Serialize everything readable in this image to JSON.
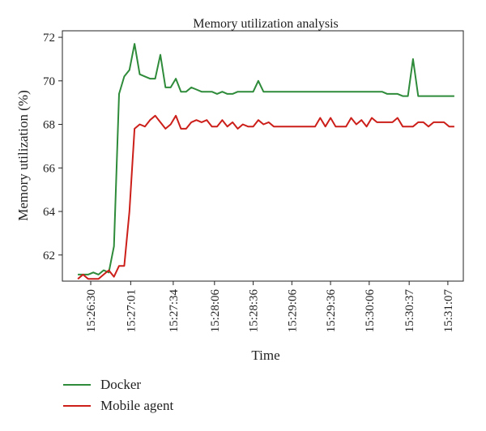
{
  "chart_data": {
    "type": "line",
    "title": "Memory utilization analysis",
    "xlabel": "Time",
    "ylabel": "Memory utilization (%)",
    "ylim": [
      60.8,
      72.3
    ],
    "yticks": [
      62,
      64,
      66,
      68,
      70,
      72
    ],
    "xticks": [
      "15:26:30",
      "15:27:01",
      "15:27:34",
      "15:28:06",
      "15:28:36",
      "15:29:06",
      "15:29:36",
      "15:30:06",
      "15:30:37",
      "15:31:07"
    ],
    "grid": false,
    "legend_position": "bottom-left",
    "x": [
      "15:26:20",
      "15:26:24",
      "15:26:28",
      "15:26:32",
      "15:26:36",
      "15:26:40",
      "15:26:44",
      "15:26:48",
      "15:26:52",
      "15:26:56",
      "15:27:00",
      "15:27:04",
      "15:27:08",
      "15:27:12",
      "15:27:16",
      "15:27:20",
      "15:27:24",
      "15:27:28",
      "15:27:32",
      "15:27:36",
      "15:27:40",
      "15:27:44",
      "15:27:48",
      "15:27:52",
      "15:27:56",
      "15:28:00",
      "15:28:04",
      "15:28:08",
      "15:28:12",
      "15:28:16",
      "15:28:20",
      "15:28:24",
      "15:28:28",
      "15:28:32",
      "15:28:36",
      "15:28:40",
      "15:28:44",
      "15:28:48",
      "15:28:52",
      "15:28:56",
      "15:29:00",
      "15:29:04",
      "15:29:08",
      "15:29:12",
      "15:29:16",
      "15:29:20",
      "15:29:24",
      "15:29:28",
      "15:29:32",
      "15:29:36",
      "15:29:40",
      "15:29:44",
      "15:29:48",
      "15:29:52",
      "15:29:56",
      "15:30:00",
      "15:30:04",
      "15:30:08",
      "15:30:12",
      "15:30:16",
      "15:30:20",
      "15:30:24",
      "15:30:28",
      "15:30:32",
      "15:30:36",
      "15:30:40",
      "15:30:44",
      "15:30:48",
      "15:30:52",
      "15:30:56",
      "15:31:00",
      "15:31:04",
      "15:31:08",
      "15:31:12"
    ],
    "series": [
      {
        "name": "Docker",
        "color": "#2e8b3a",
        "values": [
          61.1,
          61.1,
          61.1,
          61.2,
          61.1,
          61.3,
          61.2,
          62.4,
          69.4,
          70.2,
          70.5,
          71.7,
          70.3,
          70.2,
          70.1,
          70.1,
          71.2,
          69.7,
          69.7,
          70.1,
          69.5,
          69.5,
          69.7,
          69.6,
          69.5,
          69.5,
          69.5,
          69.4,
          69.5,
          69.4,
          69.4,
          69.5,
          69.5,
          69.5,
          69.5,
          70.0,
          69.5,
          69.5,
          69.5,
          69.5,
          69.5,
          69.5,
          69.5,
          69.5,
          69.5,
          69.5,
          69.5,
          69.5,
          69.5,
          69.5,
          69.5,
          69.5,
          69.5,
          69.5,
          69.5,
          69.5,
          69.5,
          69.5,
          69.5,
          69.5,
          69.4,
          69.4,
          69.4,
          69.3,
          69.3,
          71.0,
          69.3,
          69.3,
          69.3,
          69.3,
          69.3,
          69.3,
          69.3,
          69.3
        ]
      },
      {
        "name": "Mobile agent",
        "color": "#cc1f1a",
        "values": [
          60.9,
          61.1,
          60.9,
          60.9,
          60.9,
          61.1,
          61.3,
          61.0,
          61.5,
          61.5,
          64.0,
          67.8,
          68.0,
          67.9,
          68.2,
          68.4,
          68.1,
          67.8,
          68.0,
          68.4,
          67.8,
          67.8,
          68.1,
          68.2,
          68.1,
          68.2,
          67.9,
          67.9,
          68.2,
          67.9,
          68.1,
          67.8,
          68.0,
          67.9,
          67.9,
          68.2,
          68.0,
          68.1,
          67.9,
          67.9,
          67.9,
          67.9,
          67.9,
          67.9,
          67.9,
          67.9,
          67.9,
          68.3,
          67.9,
          68.3,
          67.9,
          67.9,
          67.9,
          68.3,
          68.0,
          68.2,
          67.9,
          68.3,
          68.1,
          68.1,
          68.1,
          68.1,
          68.3,
          67.9,
          67.9,
          67.9,
          68.1,
          68.1,
          67.9,
          68.1,
          68.1,
          68.1,
          67.9,
          67.9
        ]
      }
    ]
  }
}
